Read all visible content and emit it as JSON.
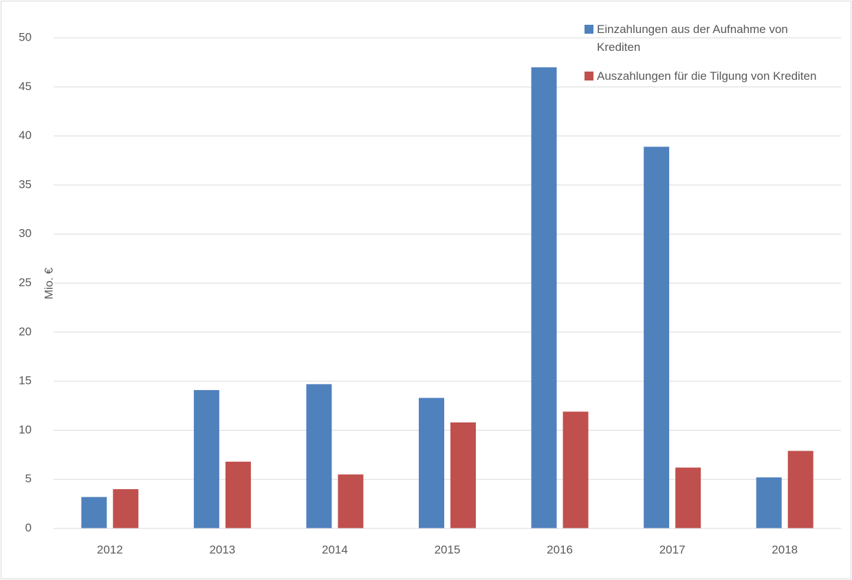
{
  "chart_data": {
    "type": "bar",
    "y_label": "Mio. €",
    "categories": [
      "2012",
      "2013",
      "2014",
      "2015",
      "2016",
      "2017",
      "2018"
    ],
    "series": [
      {
        "name": "Einzahlungen aus der Aufnahme von Krediten",
        "color": "#4f81bd",
        "values": [
          3.2,
          14.1,
          14.7,
          13.3,
          47.0,
          38.9,
          5.2
        ]
      },
      {
        "name": "Auszahlungen für die Tilgung von Krediten",
        "color": "#c0504d",
        "values": [
          4.0,
          6.8,
          5.5,
          10.8,
          11.9,
          6.2,
          7.9
        ]
      }
    ],
    "ylim": [
      0,
      50
    ],
    "yticks": [
      0,
      5,
      10,
      15,
      20,
      25,
      30,
      35,
      40,
      45,
      50
    ],
    "grid": true,
    "legend": "upper-right"
  }
}
